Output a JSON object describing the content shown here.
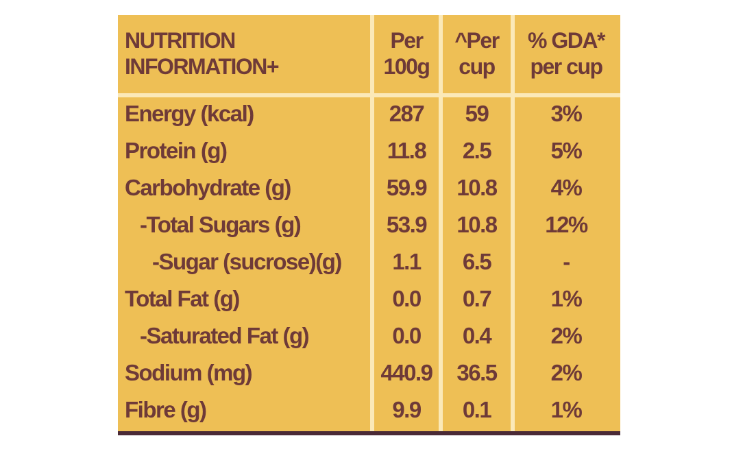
{
  "label": {
    "header": [
      [
        "NUTRITION",
        "INFORMATION+"
      ],
      [
        "Per",
        "100g"
      ],
      [
        "^Per",
        "cup"
      ],
      [
        "% GDA*",
        "per cup"
      ]
    ],
    "rows": [
      [
        "Energy (kcal)",
        "287",
        "59",
        "3%"
      ],
      [
        "Protein (g)",
        "11.8",
        "2.5",
        "5%"
      ],
      [
        "Carbohydrate (g)",
        "59.9",
        "10.8",
        "4%"
      ],
      [
        "-Total Sugars (g)",
        "53.9",
        "10.8",
        "12%"
      ],
      [
        "-Sugar (sucrose)(g)",
        "1.1",
        "6.5",
        "-"
      ],
      [
        "Total Fat (g)",
        "0.0",
        "0.7",
        "1%"
      ],
      [
        "-Saturated Fat (g)",
        "0.0",
        "0.4",
        "2%"
      ],
      [
        "Sodium (mg)",
        "440.9",
        "36.5",
        "2%"
      ],
      [
        "Fibre (g)",
        "9.9",
        "0.1",
        "1%"
      ]
    ]
  }
}
